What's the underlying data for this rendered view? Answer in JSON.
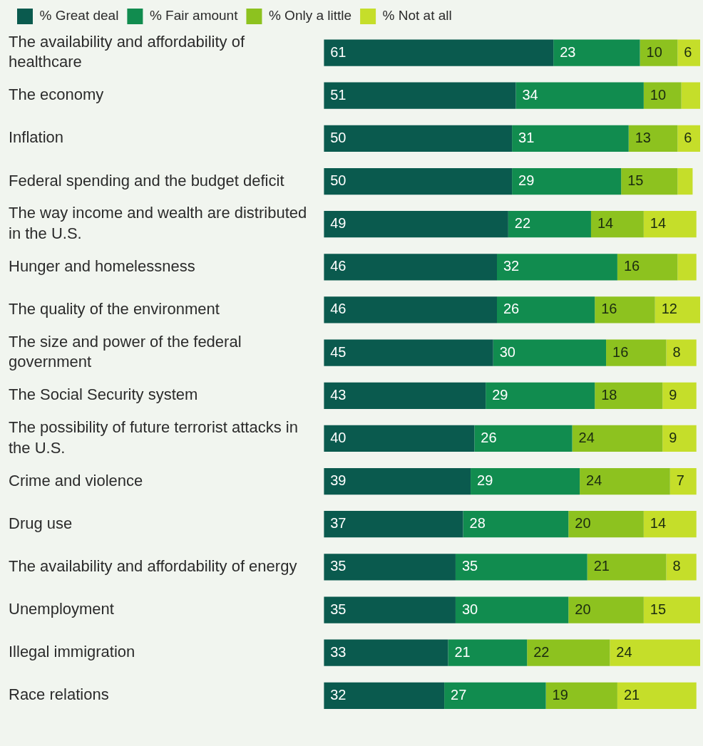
{
  "chart_data": {
    "type": "bar",
    "orientation": "horizontal",
    "stacked": true,
    "legend": "top left",
    "categories": [
      "The availability and affordability of healthcare",
      "The economy",
      "Inflation",
      "Federal spending and the budget deficit",
      "The way income and wealth are distributed in the U.S.",
      "Hunger and homelessness",
      "The quality of the environment",
      "The size and power of the federal government",
      "The Social Security system",
      "The possibility of future terrorist attacks in the U.S.",
      "Crime and violence",
      "Drug use",
      "The availability and affordability of energy",
      "Unemployment",
      "Illegal immigration",
      "Race relations"
    ],
    "series": [
      {
        "name": "% Great deal",
        "color": "#0a5a4e",
        "values": [
          61,
          51,
          50,
          50,
          49,
          46,
          46,
          45,
          43,
          40,
          39,
          37,
          35,
          35,
          33,
          32
        ],
        "value_labels": [
          "61",
          "51",
          "50",
          "50",
          "49",
          "46",
          "46",
          "45",
          "43",
          "40",
          "39",
          "37",
          "35",
          "35",
          "33",
          "32"
        ]
      },
      {
        "name": "% Fair amount",
        "color": "#118c4f",
        "values": [
          23,
          34,
          31,
          29,
          22,
          32,
          26,
          30,
          29,
          26,
          29,
          28,
          35,
          30,
          21,
          27
        ],
        "value_labels": [
          "23",
          "34",
          "31",
          "29",
          "22",
          "32",
          "26",
          "30",
          "29",
          "26",
          "29",
          "28",
          "35",
          "30",
          "21",
          "27"
        ]
      },
      {
        "name": "% Only a little",
        "color": "#8dc21f",
        "values": [
          10,
          10,
          13,
          15,
          14,
          16,
          16,
          16,
          18,
          24,
          24,
          20,
          21,
          20,
          22,
          19
        ],
        "value_labels": [
          "10",
          "10",
          "13",
          "15",
          "14",
          "16",
          "16",
          "16",
          "18",
          "24",
          "24",
          "20",
          "21",
          "20",
          "22",
          "19"
        ]
      },
      {
        "name": "% Not at all",
        "color": "#c5de2a",
        "values": [
          6,
          5,
          6,
          4,
          14,
          5,
          12,
          8,
          9,
          9,
          7,
          14,
          8,
          15,
          24,
          21
        ],
        "value_labels": [
          "6",
          null,
          "6",
          null,
          "14",
          null,
          "12",
          "8",
          "9",
          "9",
          "7",
          "14",
          "8",
          "15",
          "24",
          "21"
        ]
      }
    ]
  }
}
